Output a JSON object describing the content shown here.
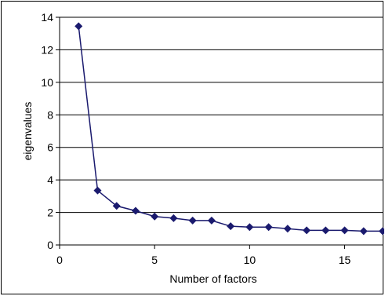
{
  "chart_data": {
    "type": "line",
    "title": "",
    "xlabel": "Number of factors",
    "ylabel": "eigenvalues",
    "xlim": [
      0,
      17
    ],
    "ylim": [
      0,
      14
    ],
    "x_ticks": [
      0,
      5,
      10,
      15
    ],
    "y_ticks": [
      0,
      2,
      4,
      6,
      8,
      10,
      12,
      14
    ],
    "grid": "horizontal",
    "legend": "none",
    "series": [
      {
        "x": [
          1,
          2,
          3,
          4,
          5,
          6,
          7,
          8,
          9,
          10,
          11,
          12,
          13,
          14,
          15,
          16,
          17
        ],
        "values": [
          13.45,
          3.35,
          2.4,
          2.1,
          1.75,
          1.65,
          1.5,
          1.5,
          1.15,
          1.1,
          1.1,
          1.0,
          0.9,
          0.9,
          0.9,
          0.85,
          0.85
        ],
        "color": "#1a1a6e",
        "marker": "diamond"
      }
    ]
  }
}
